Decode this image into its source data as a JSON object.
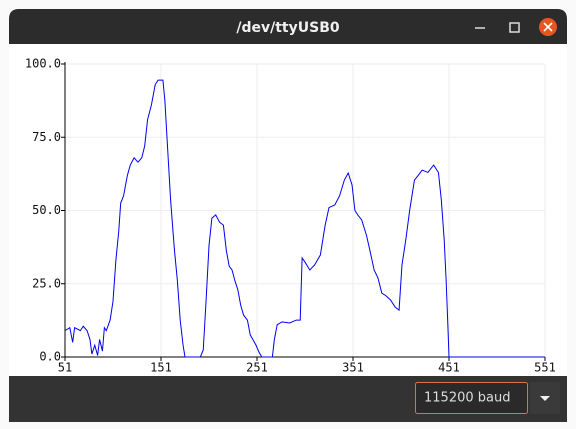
{
  "window": {
    "title": "/dev/ttyUSB0"
  },
  "chart_data": {
    "type": "line",
    "x": [
      51,
      56,
      59,
      61,
      67,
      70,
      74,
      77,
      79,
      82,
      85,
      87,
      90,
      92,
      94,
      98,
      101,
      104,
      107,
      109,
      112,
      116,
      119,
      123,
      127,
      131,
      134,
      137,
      141,
      145,
      148,
      153,
      155,
      158,
      161,
      165,
      168,
      171,
      174,
      176,
      192,
      195,
      198,
      201,
      204,
      208,
      212,
      216,
      219,
      222,
      225,
      228,
      231,
      234,
      237,
      241,
      244,
      247,
      250,
      253,
      256,
      267,
      269,
      272,
      277,
      285,
      292,
      296,
      298,
      301,
      306,
      311,
      317,
      322,
      326,
      332,
      337,
      342,
      346,
      350,
      353,
      356,
      360,
      365,
      369,
      373,
      377,
      381,
      385,
      390,
      395,
      399,
      402,
      406,
      410,
      415,
      419,
      423,
      429,
      435,
      440,
      443,
      446,
      448,
      450,
      451,
      551
    ],
    "series": [
      {
        "color": "#0000ee",
        "values": [
          9,
          10,
          5,
          10,
          9,
          10.5,
          9,
          6,
          1,
          4,
          0.5,
          6,
          2,
          10,
          9,
          12.6,
          19,
          33,
          43,
          52.5,
          55,
          62,
          65.5,
          68,
          66.5,
          68,
          72,
          81,
          86,
          93,
          94.5,
          94.5,
          87.7,
          70.6,
          53.6,
          36.5,
          26.3,
          12.6,
          4,
          0,
          0,
          2.4,
          19.5,
          38,
          47.4,
          48.5,
          46,
          45,
          36.5,
          31,
          29.7,
          26,
          23,
          17.7,
          14.3,
          12.6,
          7.5,
          5.8,
          4,
          1.7,
          0,
          0,
          5.8,
          11,
          12,
          11.6,
          12.6,
          12.6,
          33.8,
          32.4,
          29.7,
          31.4,
          34.8,
          45,
          51,
          51.9,
          55,
          60.4,
          62.8,
          58.7,
          50,
          48.5,
          46.8,
          41.6,
          35.8,
          29.7,
          27,
          21.8,
          21,
          19.5,
          17,
          16,
          31.4,
          40,
          50,
          60.4,
          62,
          63.8,
          63,
          65.5,
          63,
          53.6,
          40,
          26.3,
          9.2,
          0,
          0
        ]
      }
    ],
    "xlim": [
      51,
      551
    ],
    "xticks": [
      51,
      151,
      251,
      351,
      451,
      551
    ],
    "ylim": [
      0,
      100
    ],
    "yticks": [
      {
        "value": 0,
        "label": "0.0"
      },
      {
        "value": 25,
        "label": "25.0"
      },
      {
        "value": 50,
        "label": "50.0"
      },
      {
        "value": 75,
        "label": "75.0"
      },
      {
        "value": 100,
        "label": "100.0"
      }
    ],
    "grid": true
  },
  "baud": "115200 baud"
}
